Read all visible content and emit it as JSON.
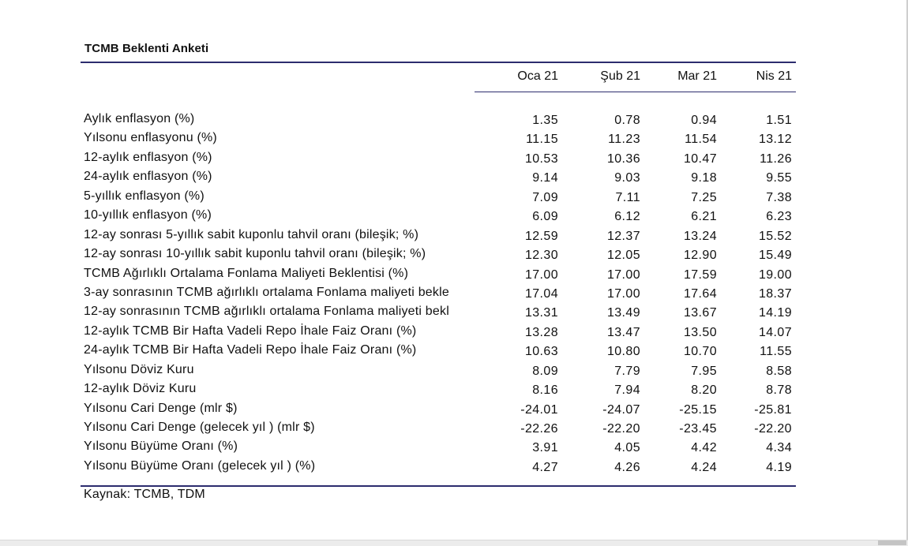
{
  "table": {
    "title": "TCMB Beklenti Anketi",
    "columns": [
      "Oca 21",
      "Şub 21",
      "Mar 21",
      "Nis 21"
    ],
    "rows": [
      {
        "label": "Aylık enflasyon (%)",
        "values": [
          "1.35",
          "0.78",
          "0.94",
          "1.51"
        ]
      },
      {
        "label": "Yılsonu enflasyonu (%)",
        "values": [
          "11.15",
          "11.23",
          "11.54",
          "13.12"
        ]
      },
      {
        "label": "12-aylık enflasyon (%)",
        "values": [
          "10.53",
          "10.36",
          "10.47",
          "11.26"
        ]
      },
      {
        "label": "24-aylık enflasyon (%)",
        "values": [
          "9.14",
          "9.03",
          "9.18",
          "9.55"
        ]
      },
      {
        "label": "5-yıllık enflasyon (%)",
        "values": [
          "7.09",
          "7.11",
          "7.25",
          "7.38"
        ]
      },
      {
        "label": "10-yıllık enflasyon (%)",
        "values": [
          "6.09",
          "6.12",
          "6.21",
          "6.23"
        ]
      },
      {
        "label": "12-ay sonrası 5-yıllık sabit kuponlu tahvil oranı (bileşik; %)",
        "values": [
          "12.59",
          "12.37",
          "13.24",
          "15.52"
        ]
      },
      {
        "label": "12-ay sonrası 10-yıllık sabit kuponlu tahvil oranı (bileşik; %)",
        "values": [
          "12.30",
          "12.05",
          "12.90",
          "15.49"
        ]
      },
      {
        "label": "TCMB Ağırlıklı Ortalama Fonlama Maliyeti Beklentisi (%)",
        "values": [
          "17.00",
          "17.00",
          "17.59",
          "19.00"
        ]
      },
      {
        "label": "3-ay sonrasının TCMB ağırlıklı ortalama Fonlama maliyeti bekle",
        "values": [
          "17.04",
          "17.00",
          "17.64",
          "18.37"
        ]
      },
      {
        "label": "12-ay sonrasının TCMB ağırlıklı ortalama Fonlama maliyeti bekl",
        "values": [
          "13.31",
          "13.49",
          "13.67",
          "14.19"
        ]
      },
      {
        "label": "12-aylık TCMB Bir Hafta Vadeli Repo İhale Faiz Oranı (%)",
        "values": [
          "13.28",
          "13.47",
          "13.50",
          "14.07"
        ]
      },
      {
        "label": "24-aylık TCMB Bir Hafta Vadeli Repo İhale Faiz Oranı (%)",
        "values": [
          "10.63",
          "10.80",
          "10.70",
          "11.55"
        ]
      },
      {
        "label": "Yılsonu Döviz Kuru",
        "values": [
          "8.09",
          "7.79",
          "7.95",
          "8.58"
        ]
      },
      {
        "label": "12-aylık Döviz Kuru",
        "values": [
          "8.16",
          "7.94",
          "8.20",
          "8.78"
        ]
      },
      {
        "label": "Yılsonu Cari Denge (mlr $)",
        "values": [
          "-24.01",
          "-24.07",
          "-25.15",
          "-25.81"
        ]
      },
      {
        "label": "Yılsonu Cari Denge (gelecek yıl ) (mlr $)",
        "values": [
          "-22.26",
          "-22.20",
          "-23.45",
          "-22.20"
        ]
      },
      {
        "label": "Yılsonu Büyüme Oranı (%)",
        "values": [
          "3.91",
          "4.05",
          "4.42",
          "4.34"
        ]
      },
      {
        "label": "Yılsonu Büyüme Oranı (gelecek yıl ) (%)",
        "values": [
          "4.27",
          "4.26",
          "4.24",
          "4.19"
        ]
      }
    ],
    "source": "Kaynak: TCMB, TDM"
  }
}
